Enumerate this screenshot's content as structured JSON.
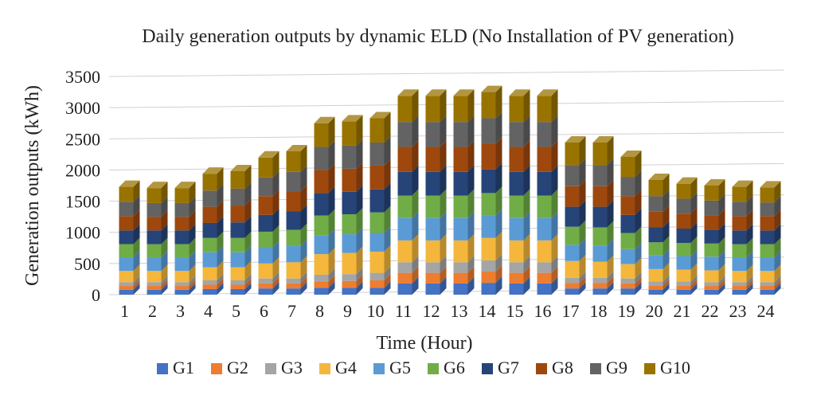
{
  "chart_data": {
    "type": "bar",
    "stacked": true,
    "title": "Daily generation outputs by dynamic ELD (No Installation of PV generation)",
    "xlabel": "Time (Hour)",
    "ylabel": "Generation outputs (kWh)",
    "ylim": [
      0,
      3500
    ],
    "yticks": [
      0,
      500,
      1000,
      1500,
      2000,
      2500,
      3000,
      3500
    ],
    "grid": true,
    "legend_position": "bottom",
    "categories": [
      "1",
      "2",
      "3",
      "4",
      "5",
      "6",
      "7",
      "8",
      "9",
      "10",
      "11",
      "12",
      "13",
      "14",
      "15",
      "16",
      "17",
      "18",
      "19",
      "20",
      "21",
      "22",
      "23",
      "24"
    ],
    "series": [
      {
        "name": "G1",
        "color": "#4472C4",
        "values": [
          80,
          80,
          80,
          90,
          90,
          100,
          100,
          110,
          110,
          110,
          180,
          180,
          180,
          190,
          180,
          180,
          100,
          100,
          100,
          80,
          80,
          80,
          80,
          80
        ]
      },
      {
        "name": "G2",
        "color": "#ED7D31",
        "values": [
          60,
          60,
          60,
          70,
          70,
          80,
          80,
          100,
          110,
          120,
          170,
          170,
          170,
          180,
          170,
          170,
          90,
          90,
          80,
          70,
          70,
          60,
          60,
          60
        ]
      },
      {
        "name": "G3",
        "color": "#A5A5A5",
        "values": [
          60,
          60,
          60,
          70,
          70,
          80,
          80,
          110,
          110,
          120,
          170,
          170,
          170,
          180,
          170,
          170,
          80,
          80,
          80,
          60,
          60,
          60,
          60,
          60
        ]
      },
      {
        "name": "G4",
        "color": "#F4B73C",
        "values": [
          180,
          180,
          180,
          210,
          210,
          240,
          260,
          330,
          340,
          340,
          350,
          350,
          350,
          360,
          350,
          350,
          270,
          260,
          230,
          200,
          190,
          190,
          180,
          180
        ]
      },
      {
        "name": "G5",
        "color": "#5B9BD5",
        "values": [
          220,
          220,
          220,
          240,
          240,
          260,
          260,
          300,
          300,
          300,
          360,
          360,
          360,
          360,
          360,
          360,
          260,
          260,
          240,
          220,
          220,
          220,
          220,
          220
        ]
      },
      {
        "name": "G6",
        "color": "#70AD47",
        "values": [
          210,
          210,
          210,
          230,
          230,
          250,
          260,
          320,
          320,
          330,
          360,
          360,
          360,
          360,
          360,
          360,
          290,
          290,
          260,
          210,
          210,
          210,
          210,
          210
        ]
      },
      {
        "name": "G7",
        "color": "#264478",
        "values": [
          220,
          220,
          220,
          240,
          250,
          270,
          300,
          360,
          360,
          370,
          380,
          380,
          380,
          380,
          380,
          380,
          320,
          330,
          290,
          240,
          230,
          220,
          220,
          220
        ]
      },
      {
        "name": "G8",
        "color": "#9E480E",
        "values": [
          230,
          220,
          220,
          260,
          270,
          300,
          320,
          370,
          370,
          380,
          400,
          400,
          400,
          410,
          400,
          400,
          330,
          330,
          300,
          250,
          240,
          230,
          230,
          230
        ]
      },
      {
        "name": "G9",
        "color": "#636363",
        "values": [
          230,
          220,
          220,
          260,
          270,
          300,
          310,
          370,
          370,
          370,
          400,
          400,
          400,
          410,
          400,
          400,
          340,
          340,
          310,
          250,
          240,
          240,
          230,
          220
        ]
      },
      {
        "name": "G10",
        "color": "#997300",
        "values": [
          240,
          240,
          240,
          270,
          280,
          320,
          330,
          380,
          390,
          390,
          420,
          420,
          420,
          420,
          420,
          420,
          360,
          360,
          320,
          260,
          240,
          240,
          240,
          240
        ]
      }
    ]
  }
}
